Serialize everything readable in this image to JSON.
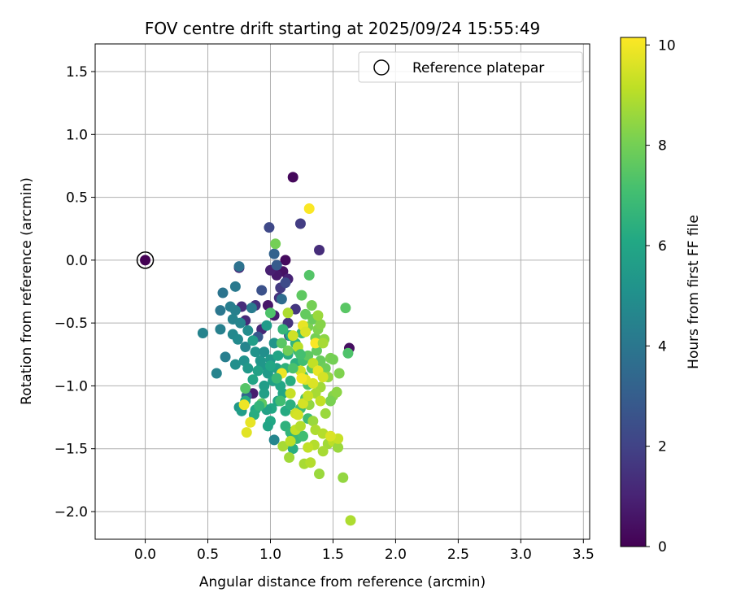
{
  "chart_data": {
    "type": "scatter",
    "title": "FOV centre drift starting at 2025/09/24 15:55:49",
    "xlabel": "Angular distance from reference (arcmin)",
    "ylabel": "Rotation from reference (arcmin)",
    "xlim": [
      -0.4,
      3.55
    ],
    "ylim": [
      -2.22,
      1.72
    ],
    "xticks": [
      0.0,
      0.5,
      1.0,
      1.5,
      2.0,
      2.5,
      3.0,
      3.5
    ],
    "xtick_labels": [
      "0.0",
      "0.5",
      "1.0",
      "1.5",
      "2.0",
      "2.5",
      "3.0",
      "3.5"
    ],
    "yticks": [
      1.5,
      1.0,
      0.5,
      0.0,
      -0.5,
      -1.0,
      -1.5,
      -2.0
    ],
    "ytick_labels": [
      "1.5",
      "1.0",
      "0.5",
      "0.0",
      "−0.5",
      "−1.0",
      "−1.5",
      "−2.0"
    ],
    "grid": true,
    "legend": {
      "position": "top-right",
      "entries": [
        "Reference platepar"
      ]
    },
    "reference": {
      "x": 0.0,
      "y": 0.0,
      "hours": 0.0
    },
    "colorbar": {
      "label": "Hours from first FF file",
      "min": 0,
      "max": 10.15,
      "ticks": [
        0,
        2,
        4,
        6,
        8,
        10
      ],
      "tick_labels": [
        "0",
        "2",
        "4",
        "6",
        "8",
        "10"
      ],
      "colormap": "viridis"
    },
    "points": [
      [
        1.18,
        0.66,
        0.2
      ],
      [
        1.63,
        -0.7,
        0.4
      ],
      [
        1.12,
        0.0,
        0.3
      ],
      [
        1.1,
        -0.09,
        0.5
      ],
      [
        1.05,
        -0.12,
        0.7
      ],
      [
        1.14,
        -0.15,
        1.0
      ],
      [
        1.0,
        -0.08,
        0.9
      ],
      [
        0.98,
        -0.36,
        0.6
      ],
      [
        1.03,
        -0.44,
        0.8
      ],
      [
        0.93,
        -0.55,
        1.1
      ],
      [
        0.8,
        -0.48,
        1.2
      ],
      [
        0.88,
        -0.36,
        1.4
      ],
      [
        0.86,
        -1.06,
        0.8
      ],
      [
        0.77,
        -0.37,
        1.3
      ],
      [
        0.75,
        -0.06,
        1.1
      ],
      [
        1.08,
        -0.22,
        1.7
      ],
      [
        1.14,
        -0.5,
        1.5
      ],
      [
        1.2,
        -0.39,
        1.6
      ],
      [
        1.07,
        -0.3,
        1.5
      ],
      [
        1.24,
        0.29,
        1.8
      ],
      [
        0.99,
        0.26,
        2.2
      ],
      [
        1.39,
        0.08,
        1.3
      ],
      [
        1.03,
        0.05,
        3.2
      ],
      [
        1.05,
        -0.04,
        2.9
      ],
      [
        0.93,
        -0.24,
        2.5
      ],
      [
        1.12,
        -0.18,
        2.3
      ],
      [
        0.9,
        -0.61,
        2.8
      ],
      [
        1.15,
        -0.6,
        2.4
      ],
      [
        0.81,
        -1.08,
        3.3
      ],
      [
        1.09,
        -0.31,
        3.6
      ],
      [
        0.75,
        -0.05,
        3.8
      ],
      [
        0.62,
        -0.26,
        3.9
      ],
      [
        0.72,
        -0.21,
        4.1
      ],
      [
        0.6,
        -0.4,
        4.0
      ],
      [
        0.68,
        -0.37,
        4.3
      ],
      [
        0.72,
        -0.4,
        4.4
      ],
      [
        0.85,
        -0.38,
        4.2
      ],
      [
        0.7,
        -0.47,
        4.5
      ],
      [
        0.76,
        -0.5,
        4.6
      ],
      [
        0.6,
        -0.55,
        4.4
      ],
      [
        0.46,
        -0.58,
        4.5
      ],
      [
        0.7,
        -0.59,
        4.7
      ],
      [
        0.74,
        -0.63,
        4.8
      ],
      [
        0.82,
        -0.56,
        4.9
      ],
      [
        0.8,
        -0.69,
        4.6
      ],
      [
        0.64,
        -0.77,
        4.3
      ],
      [
        0.72,
        -0.83,
        5.0
      ],
      [
        0.57,
        -0.9,
        4.5
      ],
      [
        0.79,
        -0.8,
        5.1
      ],
      [
        0.88,
        -0.73,
        5.2
      ],
      [
        0.92,
        -0.8,
        5.3
      ],
      [
        0.95,
        -0.73,
        5.0
      ],
      [
        1.0,
        -0.79,
        5.4
      ],
      [
        1.03,
        -0.66,
        5.2
      ],
      [
        0.97,
        -0.52,
        5.5
      ],
      [
        0.86,
        -0.64,
        5.6
      ],
      [
        0.93,
        -0.84,
        5.3
      ],
      [
        1.05,
        -0.86,
        5.7
      ],
      [
        0.98,
        -0.9,
        5.5
      ],
      [
        0.9,
        -0.88,
        5.8
      ],
      [
        0.82,
        -0.86,
        5.4
      ],
      [
        0.86,
        -0.95,
        5.9
      ],
      [
        0.95,
        -1.0,
        5.6
      ],
      [
        1.02,
        -0.96,
        5.8
      ],
      [
        1.08,
        -1.0,
        6.0
      ],
      [
        0.95,
        -1.06,
        5.7
      ],
      [
        1.06,
        -1.12,
        5.9
      ],
      [
        1.01,
        -1.18,
        6.1
      ],
      [
        0.97,
        -1.19,
        5.8
      ],
      [
        0.88,
        -1.19,
        6.0
      ],
      [
        0.8,
        -1.12,
        6.2
      ],
      [
        0.75,
        -1.17,
        5.4
      ],
      [
        0.77,
        -1.2,
        5.6
      ],
      [
        0.87,
        -1.23,
        6.3
      ],
      [
        1.0,
        -1.28,
        6.1
      ],
      [
        0.98,
        -1.32,
        5.9
      ],
      [
        1.03,
        -1.43,
        4.6
      ],
      [
        1.12,
        -1.2,
        6.2
      ],
      [
        1.16,
        -1.15,
        6.4
      ],
      [
        1.1,
        -1.06,
        6.0
      ],
      [
        1.16,
        -0.96,
        6.3
      ],
      [
        1.12,
        -0.86,
        6.5
      ],
      [
        1.2,
        -0.82,
        6.4
      ],
      [
        1.14,
        -0.75,
        6.2
      ],
      [
        1.2,
        -0.66,
        6.6
      ],
      [
        1.16,
        -0.6,
        6.1
      ],
      [
        1.1,
        -0.55,
        6.7
      ],
      [
        1.25,
        -0.58,
        6.8
      ],
      [
        1.22,
        -0.72,
        6.9
      ],
      [
        1.26,
        -0.8,
        7.0
      ],
      [
        1.06,
        -0.76,
        5.9
      ],
      [
        1.0,
        -0.84,
        6.0
      ],
      [
        1.12,
        -1.32,
        6.5
      ],
      [
        1.16,
        -1.37,
        6.6
      ],
      [
        1.21,
        -1.42,
        6.8
      ],
      [
        1.18,
        -1.5,
        6.3
      ],
      [
        1.26,
        -1.4,
        7.0
      ],
      [
        1.3,
        -1.26,
        6.9
      ],
      [
        1.24,
        -1.18,
        7.0
      ],
      [
        1.28,
        -1.1,
        7.2
      ],
      [
        1.3,
        -0.99,
        7.3
      ],
      [
        1.26,
        -0.92,
        7.4
      ],
      [
        1.33,
        -0.86,
        7.5
      ],
      [
        1.3,
        -0.76,
        7.6
      ],
      [
        1.37,
        -0.72,
        7.7
      ],
      [
        1.4,
        -0.8,
        7.8
      ],
      [
        1.44,
        -0.86,
        7.9
      ],
      [
        1.36,
        -0.62,
        8.0
      ],
      [
        1.3,
        -0.53,
        8.1
      ],
      [
        1.34,
        -0.47,
        7.8
      ],
      [
        1.38,
        -0.55,
        8.2
      ],
      [
        1.28,
        -0.43,
        7.7
      ],
      [
        1.33,
        -0.36,
        8.0
      ],
      [
        1.25,
        -0.28,
        7.6
      ],
      [
        1.31,
        -0.12,
        7.4
      ],
      [
        1.04,
        0.13,
        8.0
      ],
      [
        1.6,
        -0.38,
        7.5
      ],
      [
        1.4,
        -0.51,
        8.3
      ],
      [
        1.43,
        -0.63,
        8.4
      ],
      [
        1.48,
        -0.78,
        8.1
      ],
      [
        1.5,
        -0.79,
        8.0
      ],
      [
        1.46,
        -0.93,
        8.5
      ],
      [
        1.55,
        -0.9,
        8.2
      ],
      [
        1.5,
        -1.08,
        8.3
      ],
      [
        1.53,
        -1.05,
        8.4
      ],
      [
        1.48,
        -1.12,
        8.1
      ],
      [
        1.44,
        -1.22,
        8.6
      ],
      [
        1.62,
        -0.74,
        7.3
      ],
      [
        1.4,
        -1.01,
        8.7
      ],
      [
        1.36,
        -1.06,
        8.8
      ],
      [
        1.31,
        -1.15,
        8.5
      ],
      [
        1.34,
        -1.28,
        8.6
      ],
      [
        1.36,
        -1.35,
        8.9
      ],
      [
        1.42,
        -1.38,
        9.0
      ],
      [
        1.46,
        -1.46,
        8.7
      ],
      [
        1.5,
        -1.44,
        9.1
      ],
      [
        1.54,
        -1.49,
        8.6
      ],
      [
        1.54,
        -1.42,
        9.3
      ],
      [
        1.42,
        -1.52,
        8.8
      ],
      [
        1.35,
        -1.47,
        9.0
      ],
      [
        1.3,
        -1.49,
        9.2
      ],
      [
        1.27,
        -1.62,
        8.8
      ],
      [
        1.32,
        -1.61,
        9.0
      ],
      [
        1.39,
        -1.7,
        8.6
      ],
      [
        1.58,
        -1.73,
        8.5
      ],
      [
        1.64,
        -2.07,
        8.9
      ],
      [
        1.15,
        -1.57,
        8.7
      ],
      [
        1.1,
        -1.48,
        8.8
      ],
      [
        1.16,
        -1.44,
        9.1
      ],
      [
        1.2,
        -1.35,
        9.2
      ],
      [
        1.24,
        -1.32,
        9.0
      ],
      [
        1.16,
        -1.06,
        9.3
      ],
      [
        1.2,
        -1.22,
        9.4
      ],
      [
        1.26,
        -1.14,
        9.5
      ],
      [
        1.3,
        -1.08,
        9.3
      ],
      [
        1.34,
        -0.98,
        9.6
      ],
      [
        1.28,
        -0.95,
        9.7
      ],
      [
        1.24,
        -0.88,
        9.4
      ],
      [
        1.34,
        -0.82,
        9.2
      ],
      [
        1.38,
        -0.88,
        9.8
      ],
      [
        1.42,
        -0.93,
        9.5
      ],
      [
        1.4,
        -1.12,
        9.2
      ],
      [
        1.26,
        -0.52,
        9.8
      ],
      [
        1.28,
        -0.57,
        9.6
      ],
      [
        1.22,
        -0.69,
        9.1
      ],
      [
        1.18,
        -0.6,
        9.4
      ],
      [
        1.14,
        -0.42,
        8.9
      ],
      [
        1.09,
        -0.9,
        9.9
      ],
      [
        1.25,
        -0.94,
        10.0
      ],
      [
        1.36,
        -0.66,
        10.1
      ],
      [
        1.31,
        0.41,
        10.1
      ],
      [
        0.79,
        -1.15,
        9.9
      ],
      [
        0.84,
        -1.29,
        9.8
      ],
      [
        0.81,
        -1.37,
        9.7
      ],
      [
        1.48,
        -1.4,
        9.6
      ],
      [
        1.22,
        -1.23,
        9.5
      ],
      [
        1.24,
        -0.75,
        7.1
      ],
      [
        1.18,
        -0.86,
        7.2
      ],
      [
        1.05,
        -0.94,
        6.8
      ],
      [
        1.08,
        -1.12,
        7.0
      ],
      [
        0.93,
        -1.14,
        7.6
      ],
      [
        0.8,
        -1.02,
        7.4
      ],
      [
        0.91,
        -1.16,
        6.6
      ],
      [
        1.0,
        -0.42,
        7.3
      ],
      [
        1.09,
        -0.66,
        7.5
      ],
      [
        1.14,
        -0.72,
        7.9
      ],
      [
        1.38,
        -0.44,
        8.6
      ],
      [
        1.42,
        -0.66,
        8.8
      ]
    ]
  }
}
